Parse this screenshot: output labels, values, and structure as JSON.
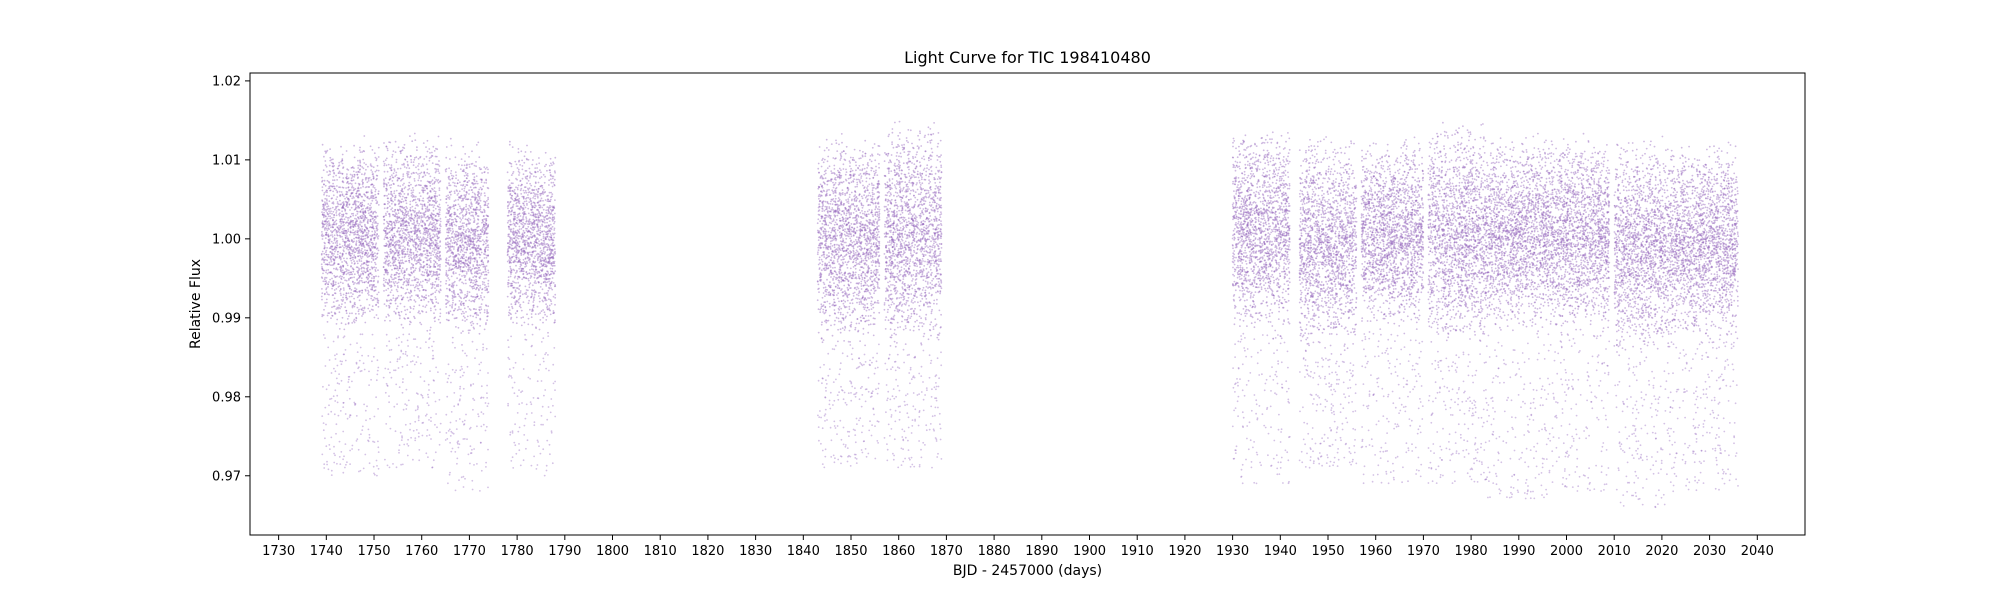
{
  "chart_data": {
    "type": "scatter",
    "title": "Light Curve for TIC 198410480",
    "xlabel": "BJD - 2457000 (days)",
    "ylabel": "Relative Flux",
    "xlim": [
      1724,
      2050
    ],
    "ylim": [
      0.9625,
      1.021
    ],
    "xticks": [
      1730,
      1740,
      1750,
      1760,
      1770,
      1780,
      1790,
      1800,
      1810,
      1820,
      1830,
      1840,
      1850,
      1860,
      1870,
      1880,
      1890,
      1900,
      1910,
      1920,
      1930,
      1940,
      1950,
      1960,
      1970,
      1980,
      1990,
      2000,
      2010,
      2020,
      2030,
      2040
    ],
    "yticks": [
      0.97,
      0.98,
      0.99,
      1.0,
      1.01,
      1.02
    ],
    "ytick_labels": [
      "0.97",
      "0.98",
      "0.99",
      "1.00",
      "1.01",
      "1.02"
    ],
    "grid": false,
    "marker_color": "#9467bd",
    "series": [
      {
        "segments": [
          {
            "x": [
              1739,
              1751
            ],
            "core": [
              0.988,
              1.013
            ],
            "tail_min": 0.97
          },
          {
            "x": [
              1752,
              1764
            ],
            "core": [
              0.988,
              1.013
            ],
            "tail_min": 0.971
          },
          {
            "x": [
              1765,
              1774
            ],
            "core": [
              0.987,
              1.012
            ],
            "tail_min": 0.968
          },
          {
            "x": [
              1778,
              1788
            ],
            "core": [
              0.988,
              1.012
            ],
            "tail_min": 0.97
          },
          {
            "x": [
              1843,
              1856
            ],
            "core": [
              0.987,
              1.013
            ],
            "tail_min": 0.971
          },
          {
            "x": [
              1857,
              1869
            ],
            "core": [
              0.986,
              1.015
            ],
            "tail_min": 0.971
          },
          {
            "x": [
              1930,
              1942
            ],
            "core": [
              0.988,
              1.014
            ],
            "tail_min": 0.969
          },
          {
            "x": [
              1944,
              1956
            ],
            "core": [
              0.985,
              1.013
            ],
            "tail_min": 0.971
          },
          {
            "x": [
              1957,
              1970
            ],
            "core": [
              0.988,
              1.013
            ],
            "tail_min": 0.969
          },
          {
            "x": [
              1971,
              1983
            ],
            "core": [
              0.986,
              1.015
            ],
            "tail_min": 0.969
          },
          {
            "x": [
              1983,
              1996
            ],
            "core": [
              0.988,
              1.013
            ],
            "tail_min": 0.967
          },
          {
            "x": [
              1996,
              2009
            ],
            "core": [
              0.988,
              1.013
            ],
            "tail_min": 0.968
          },
          {
            "x": [
              2010,
              2022
            ],
            "core": [
              0.985,
              1.013
            ],
            "tail_min": 0.966
          },
          {
            "x": [
              2022,
              2036
            ],
            "core": [
              0.987,
              1.012
            ],
            "tail_min": 0.968
          }
        ]
      }
    ]
  }
}
